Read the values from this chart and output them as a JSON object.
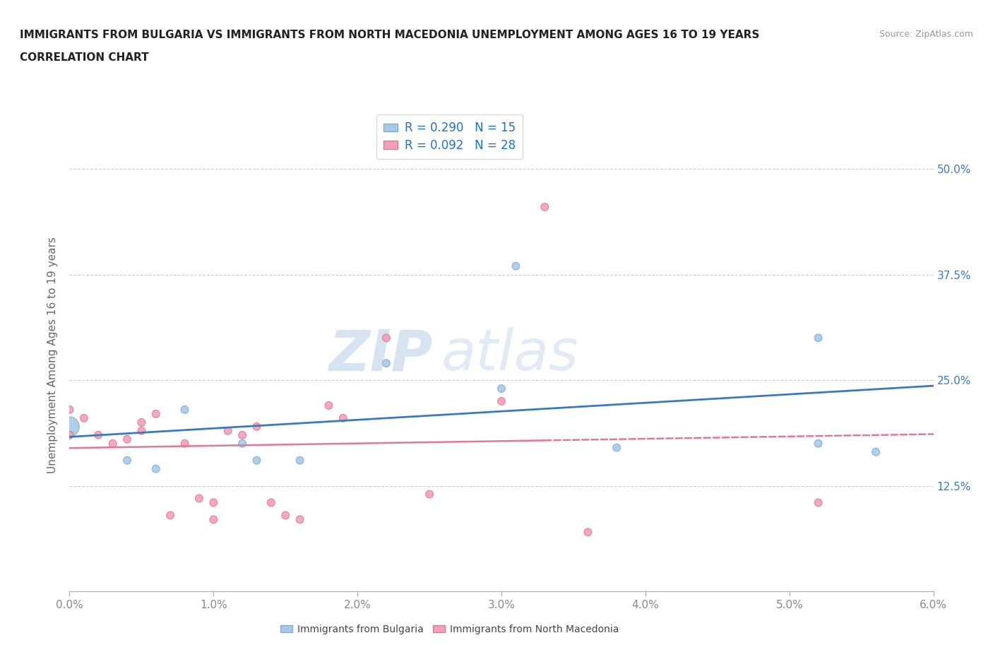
{
  "title_line1": "IMMIGRANTS FROM BULGARIA VS IMMIGRANTS FROM NORTH MACEDONIA UNEMPLOYMENT AMONG AGES 16 TO 19 YEARS",
  "title_line2": "CORRELATION CHART",
  "source_text": "Source: ZipAtlas.com",
  "ylabel": "Unemployment Among Ages 16 to 19 years",
  "xlim": [
    0.0,
    0.06
  ],
  "ylim": [
    0.0,
    0.56
  ],
  "xtick_vals": [
    0.0,
    0.01,
    0.02,
    0.03,
    0.04,
    0.05,
    0.06
  ],
  "ytick_vals": [
    0.125,
    0.25,
    0.375,
    0.5
  ],
  "ytick_labels": [
    "12.5%",
    "25.0%",
    "37.5%",
    "50.0%"
  ],
  "watermark_zip": "ZIP",
  "watermark_atlas": "atlas",
  "bulgaria_color": "#a8c8e8",
  "bulgaria_edge": "#7ab0d8",
  "north_mac_color": "#f4a0b8",
  "north_mac_edge": "#e07898",
  "bulgaria_r": 0.29,
  "bulgaria_n": 15,
  "north_mac_r": 0.092,
  "north_mac_n": 28,
  "bulgaria_line_color": "#3a7abf",
  "north_mac_line_color": "#e07898",
  "bulgaria_points_x": [
    0.0,
    0.0,
    0.004,
    0.006,
    0.008,
    0.012,
    0.013,
    0.016,
    0.022,
    0.03,
    0.031,
    0.038,
    0.052,
    0.056,
    0.052
  ],
  "bulgaria_points_y": [
    0.195,
    0.185,
    0.155,
    0.145,
    0.215,
    0.175,
    0.155,
    0.155,
    0.27,
    0.24,
    0.385,
    0.17,
    0.3,
    0.165,
    0.175
  ],
  "bulgaria_sizes": [
    400,
    60,
    60,
    60,
    60,
    60,
    60,
    60,
    60,
    60,
    60,
    60,
    60,
    60,
    60
  ],
  "north_mac_points_x": [
    0.0,
    0.0,
    0.001,
    0.002,
    0.003,
    0.004,
    0.005,
    0.005,
    0.006,
    0.007,
    0.008,
    0.009,
    0.01,
    0.01,
    0.011,
    0.012,
    0.013,
    0.014,
    0.015,
    0.016,
    0.018,
    0.019,
    0.022,
    0.025,
    0.03,
    0.033,
    0.036,
    0.052
  ],
  "north_mac_points_y": [
    0.185,
    0.215,
    0.205,
    0.185,
    0.175,
    0.18,
    0.2,
    0.19,
    0.21,
    0.09,
    0.175,
    0.11,
    0.085,
    0.105,
    0.19,
    0.185,
    0.195,
    0.105,
    0.09,
    0.085,
    0.22,
    0.205,
    0.3,
    0.115,
    0.225,
    0.455,
    0.07,
    0.105
  ],
  "north_mac_sizes": [
    60,
    60,
    60,
    60,
    60,
    60,
    60,
    60,
    60,
    60,
    60,
    60,
    60,
    60,
    60,
    60,
    60,
    60,
    60,
    60,
    60,
    60,
    60,
    60,
    60,
    60,
    60,
    60
  ],
  "bg_color": "#ffffff",
  "grid_color": "#cccccc",
  "title_fontsize": 11,
  "subtitle_fontsize": 11,
  "source_fontsize": 9,
  "tick_fontsize": 11,
  "legend_fontsize": 12,
  "ylabel_fontsize": 11,
  "ylabel_color": "#666666",
  "tick_color": "#888888",
  "title_color": "#222222"
}
